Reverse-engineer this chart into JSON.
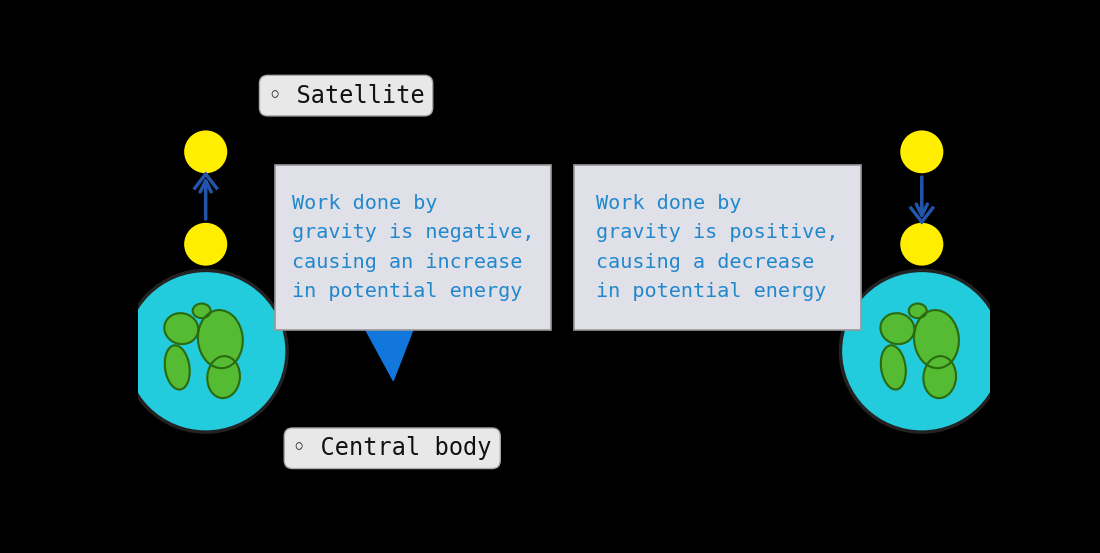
{
  "bg_color": "#000000",
  "label_bg": "#e8e8e8",
  "text_color_blue": "#2288cc",
  "text_color_black": "#111111",
  "earth_ocean": "#22ccdd",
  "earth_land": "#55bb33",
  "earth_land_outline": "#2a6a10",
  "earth_outline": "#222222",
  "sat_color": "#ffee00",
  "sat_outline": "#bb8800",
  "arrow_color": "#2255aa",
  "callout_color": "#1177dd",
  "satellite_label": "◦ Satellite",
  "central_body_label": "◦ Central body",
  "left_text": "Work done by\ngravity is negative,\ncausing an increase\nin potential energy",
  "right_text": "Work done by\ngravity is positive,\ncausing a decrease\nin potential energy",
  "font_size_label": 17,
  "font_size_text": 14.5,
  "box_facecolor": "#e0e0e8",
  "box_edgecolor": "#999999"
}
